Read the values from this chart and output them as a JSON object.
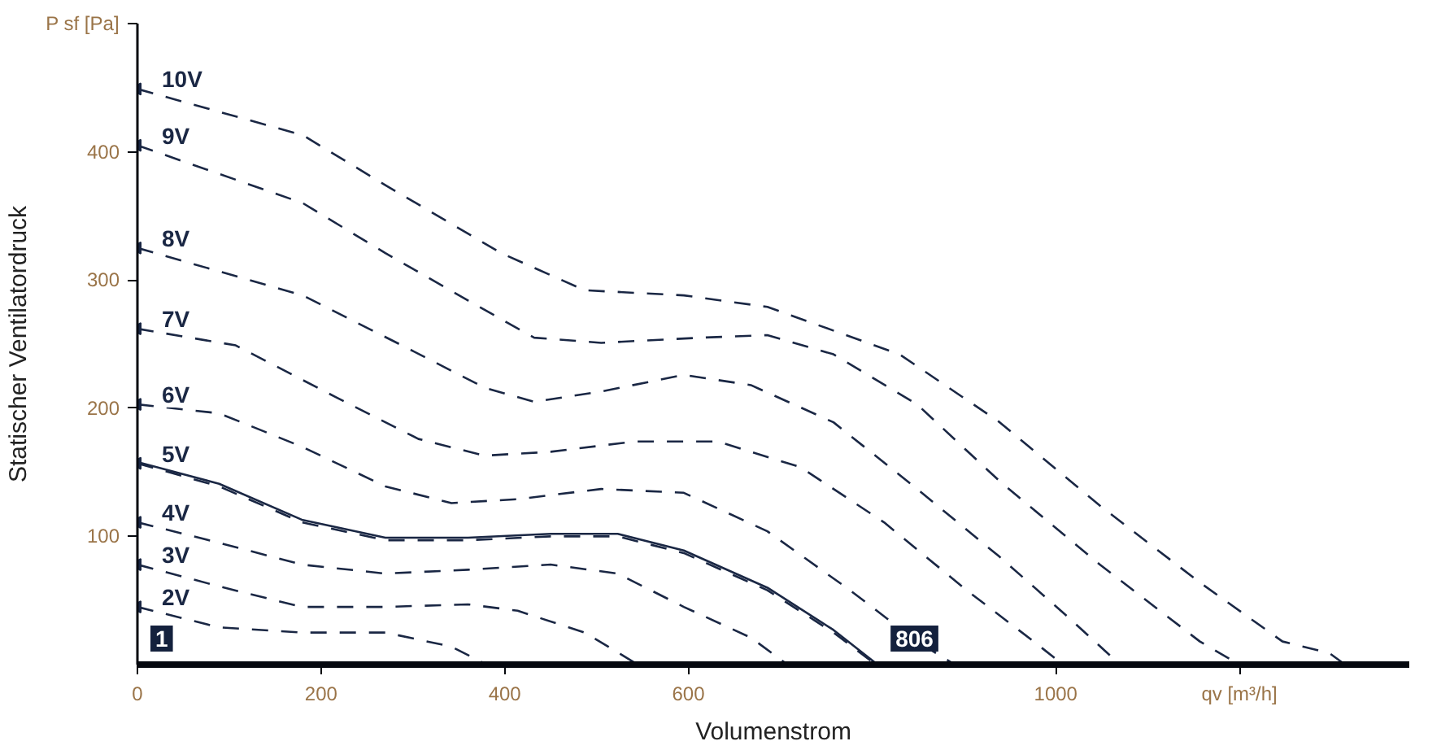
{
  "chart_data": {
    "type": "line",
    "xlabel": "Volumenstrom",
    "ylabel": "Statischer Ventilatordruck",
    "xlim": [
      0,
      1385
    ],
    "ylim": [
      0,
      500
    ],
    "xticks": [
      0,
      200,
      400,
      600,
      1000,
      {
        "value": 1200,
        "label": "qv [m³/h]"
      }
    ],
    "yticks": [
      100,
      200,
      300,
      400,
      {
        "value": 500,
        "label": "P sf [Pa]"
      }
    ],
    "grid": false,
    "line_style": "dashed",
    "series": [
      {
        "name": "10V",
        "color": "#1a2744",
        "x": [
          0,
          180,
          270,
          396,
          487,
          595,
          686,
          830,
          939,
          1048,
          1157,
          1247,
          1298,
          1315
        ],
        "values": [
          449,
          413,
          374,
          321,
          292,
          288,
          279,
          242,
          189,
          124,
          64,
          18,
          9,
          0
        ]
      },
      {
        "name": "9V",
        "color": "#1a2744",
        "x": [
          0,
          180,
          270,
          360,
          432,
          505,
          613,
          686,
          758,
          849,
          939,
          1048,
          1157,
          1200
        ],
        "values": [
          405,
          360,
          321,
          284,
          255,
          251,
          255,
          257,
          242,
          203,
          143,
          78,
          18,
          0
        ]
      },
      {
        "name": "8V",
        "color": "#1a2744",
        "x": [
          0,
          180,
          288,
          378,
          432,
          505,
          595,
          668,
          758,
          849,
          939,
          1012,
          1070
        ],
        "values": [
          325,
          288,
          249,
          216,
          205,
          213,
          226,
          218,
          189,
          137,
          84,
          38,
          0
        ]
      },
      {
        "name": "7V",
        "color": "#1a2744",
        "x": [
          0,
          107,
          215,
          306,
          378,
          450,
          541,
          632,
          722,
          813,
          903,
          976,
          1008
        ],
        "values": [
          262,
          249,
          209,
          176,
          163,
          166,
          174,
          174,
          154,
          111,
          58,
          18,
          0
        ]
      },
      {
        "name": "6V",
        "color": "#1a2744",
        "x": [
          0,
          89,
          179,
          270,
          342,
          414,
          505,
          595,
          686,
          776,
          849,
          890
        ],
        "values": [
          203,
          196,
          170,
          139,
          126,
          129,
          137,
          134,
          104,
          58,
          18,
          0
        ]
      },
      {
        "name": "5V",
        "color": "#1a2744",
        "x": [
          0,
          89,
          179,
          270,
          360,
          450,
          523,
          595,
          686,
          758,
          804
        ],
        "values": [
          157,
          139,
          111,
          97,
          97,
          100,
          100,
          87,
          58,
          25,
          0
        ]
      },
      {
        "name": "4V",
        "color": "#1a2744",
        "x": [
          0,
          89,
          179,
          270,
          360,
          450,
          523,
          595,
          668,
          708
        ],
        "values": [
          111,
          95,
          78,
          71,
          74,
          78,
          71,
          45,
          21,
          0
        ]
      },
      {
        "name": "3V",
        "color": "#1a2744",
        "x": [
          0,
          89,
          179,
          270,
          360,
          414,
          487,
          545
        ],
        "values": [
          78,
          61,
          45,
          45,
          47,
          42,
          25,
          0
        ]
      },
      {
        "name": "2V",
        "color": "#1a2744",
        "x": [
          0,
          89,
          179,
          270,
          342,
          380
        ],
        "values": [
          45,
          29,
          25,
          25,
          14,
          0
        ]
      },
      {
        "color": "#1a2744",
        "line_style": "solid",
        "x": [
          0,
          89,
          179,
          270,
          360,
          450,
          523,
          595,
          686,
          758,
          806
        ],
        "values": [
          158,
          141,
          113,
          99,
          99,
          102,
          102,
          89,
          60,
          27,
          0
        ]
      }
    ],
    "annotations": [
      "1",
      {
        "text": "806",
        "x": 806,
        "y": 0
      }
    ]
  }
}
